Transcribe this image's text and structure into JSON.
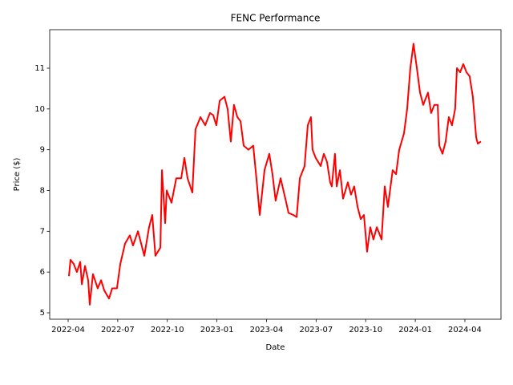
{
  "chart_data": {
    "type": "line",
    "title": "FENC Performance",
    "x_label": "Date",
    "y_label": "Price ($)",
    "color": "#ff0000",
    "x": [
      2022.254,
      2022.262,
      2022.278,
      2022.294,
      2022.311,
      2022.319,
      2022.335,
      2022.351,
      2022.359,
      2022.375,
      2022.399,
      2022.416,
      2022.432,
      2022.456,
      2022.472,
      2022.496,
      2022.513,
      2022.537,
      2022.561,
      2022.577,
      2022.602,
      2022.618,
      2022.634,
      2022.658,
      2022.674,
      2022.69,
      2022.715,
      2022.723,
      2022.739,
      2022.747,
      2022.771,
      2022.795,
      2022.82,
      2022.836,
      2022.852,
      2022.876,
      2022.892,
      2022.917,
      2022.941,
      2022.965,
      2022.981,
      2022.997,
      2023.014,
      2023.038,
      2023.054,
      2023.07,
      2023.086,
      2023.103,
      2023.119,
      2023.135,
      2023.159,
      2023.183,
      2023.199,
      2023.216,
      2023.24,
      2023.264,
      2023.28,
      2023.296,
      2023.321,
      2023.345,
      2023.361,
      2023.385,
      2023.402,
      2023.418,
      2023.442,
      2023.458,
      2023.474,
      2023.482,
      2023.498,
      2023.523,
      2023.539,
      2023.555,
      2023.571,
      2023.579,
      2023.595,
      2023.604,
      2023.62,
      2023.636,
      2023.66,
      2023.676,
      2023.692,
      2023.709,
      2023.725,
      2023.741,
      2023.757,
      2023.773,
      2023.789,
      2023.806,
      2023.83,
      2023.846,
      2023.862,
      2023.886,
      2023.903,
      2023.919,
      2023.943,
      2023.959,
      2023.975,
      2023.991,
      2024.008,
      2024.024,
      2024.04,
      2024.064,
      2024.08,
      2024.096,
      2024.113,
      2024.121,
      2024.137,
      2024.153,
      2024.169,
      2024.185,
      2024.201,
      2024.21,
      2024.226,
      2024.242,
      2024.258,
      2024.274,
      2024.29,
      2024.307,
      2024.315,
      2024.331
    ],
    "values": [
      5.9,
      6.3,
      6.2,
      6.0,
      6.25,
      5.7,
      6.15,
      5.8,
      5.2,
      5.95,
      5.6,
      5.8,
      5.55,
      5.35,
      5.6,
      5.6,
      6.2,
      6.7,
      6.9,
      6.65,
      7.0,
      6.7,
      6.4,
      7.1,
      7.4,
      6.4,
      6.6,
      8.5,
      7.2,
      8.0,
      7.7,
      8.3,
      8.3,
      8.8,
      8.3,
      7.95,
      9.5,
      9.8,
      9.6,
      9.9,
      9.85,
      9.6,
      10.2,
      10.3,
      10.0,
      9.2,
      10.1,
      9.8,
      9.7,
      9.1,
      9.0,
      9.1,
      8.3,
      7.4,
      8.5,
      8.9,
      8.4,
      7.75,
      8.3,
      7.8,
      7.45,
      7.4,
      7.35,
      8.3,
      8.6,
      9.6,
      9.8,
      9.0,
      8.8,
      8.6,
      8.9,
      8.7,
      8.2,
      8.1,
      8.9,
      8.1,
      8.5,
      7.8,
      8.2,
      7.9,
      8.1,
      7.6,
      7.3,
      7.4,
      6.5,
      7.1,
      6.8,
      7.1,
      6.8,
      8.1,
      7.6,
      8.5,
      8.4,
      9.0,
      9.4,
      10.0,
      11.0,
      11.6,
      11.0,
      10.4,
      10.1,
      10.4,
      9.9,
      10.1,
      10.1,
      9.1,
      8.9,
      9.2,
      9.8,
      9.6,
      10.0,
      11.0,
      10.9,
      11.1,
      10.9,
      10.8,
      10.3,
      9.3,
      9.15,
      9.2
    ],
    "xlim": [
      2022.157,
      2024.432
    ],
    "xticks": [
      {
        "value": 2022.25,
        "label": "2022-04"
      },
      {
        "value": 2022.5,
        "label": "2022-07"
      },
      {
        "value": 2022.75,
        "label": "2022-10"
      },
      {
        "value": 2023.0,
        "label": "2023-01"
      },
      {
        "value": 2023.25,
        "label": "2023-04"
      },
      {
        "value": 2023.5,
        "label": "2023-07"
      },
      {
        "value": 2023.75,
        "label": "2023-10"
      },
      {
        "value": 2024.0,
        "label": "2024-01"
      },
      {
        "value": 2024.25,
        "label": "2024-04"
      }
    ],
    "ylim": [
      4.843,
      11.944
    ],
    "yticks": [
      5,
      6,
      7,
      8,
      9,
      10,
      11
    ]
  }
}
